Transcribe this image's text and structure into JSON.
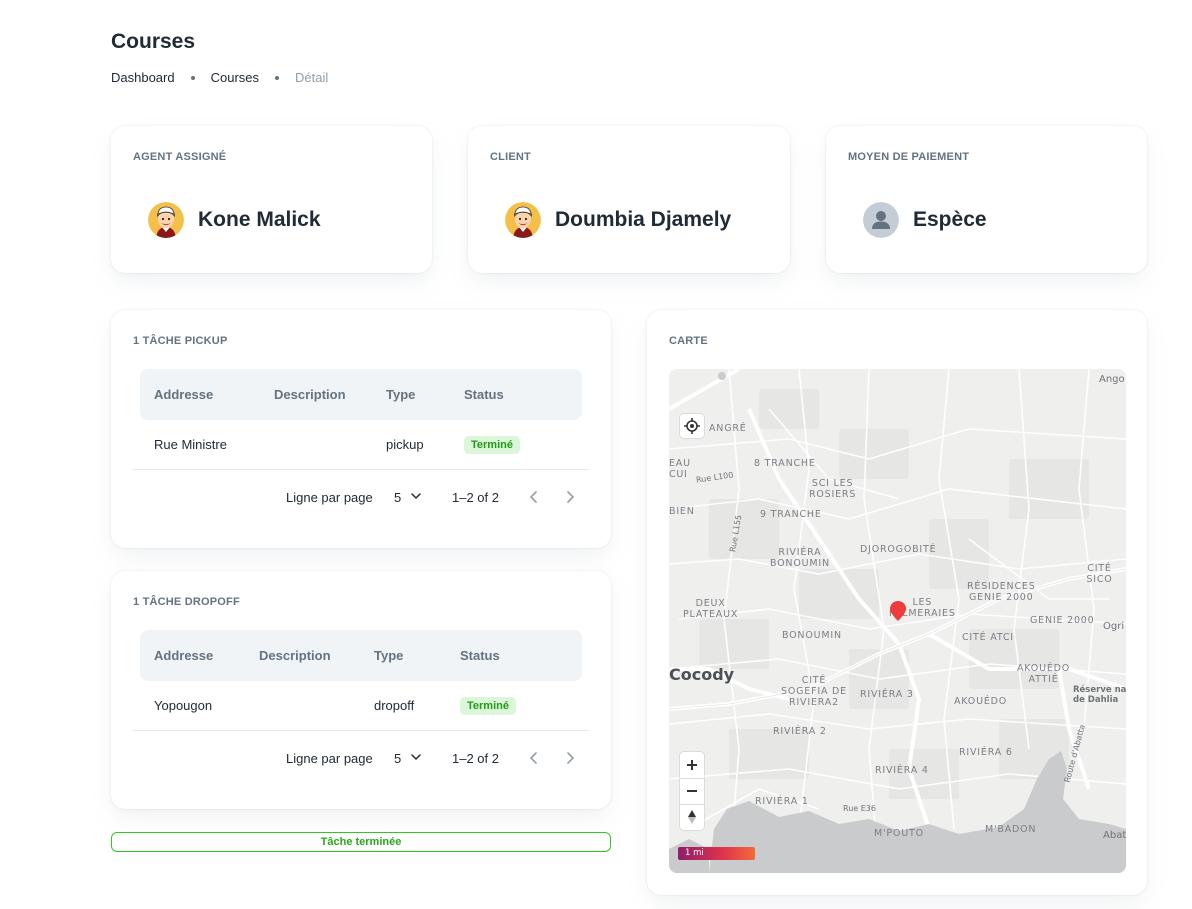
{
  "header": {
    "title": "Courses",
    "breadcrumb": [
      "Dashboard",
      "Courses",
      "Détail"
    ]
  },
  "info_cards": {
    "agent": {
      "label": "AGENT ASSIGNÉ",
      "name": "Kone Malick",
      "avatar_icon": "cartoon-avatar-icon"
    },
    "client": {
      "label": "CLIENT",
      "name": "Doumbia Djamely",
      "avatar_icon": "cartoon-avatar-icon"
    },
    "payment": {
      "label": "MOYEN DE PAIEMENT",
      "name": "Espèce",
      "avatar_icon": "default-user-icon"
    }
  },
  "table_headers": {
    "address": "Addresse",
    "description": "Description",
    "type": "Type",
    "status": "Status"
  },
  "pickup": {
    "title": "1 TÂCHE PICKUP",
    "rows": [
      {
        "address": "Rue Ministre",
        "description": "",
        "type": "pickup",
        "status": "Terminé"
      }
    ]
  },
  "dropoff": {
    "title": "1 TÂCHE DROPOFF",
    "rows": [
      {
        "address": "Yopougon",
        "description": "",
        "type": "dropoff",
        "status": "Terminé"
      }
    ]
  },
  "pagination": {
    "rows_label": "Ligne par page",
    "rows_value": "5",
    "range": "1–2 of 2"
  },
  "done_button": "Tâche terminée",
  "map": {
    "title": "CARTE",
    "scale": "1 mi",
    "city": "Cocody",
    "districts": {
      "angre": "ANGRÉ",
      "tranche8": "8 TRANCHE",
      "sci_rosiers": "SCI LES\nROSIERS",
      "tranche9": "9 TRANCHE",
      "riviera_bonoumin": "RIVIÉRA\nBONOUMIN",
      "djorogobite": "DJOROGOBITÉ",
      "residences": "RÉSIDENCES\nGENIE 2000",
      "cite_sico": "CITÉ SICO",
      "deux_plateaux": "DEUX\nPLATEAUX",
      "palmeraies": "LES\nPALMERAIES",
      "genie2000": "GENIE 2000",
      "bonoumin": "BONOUMIN",
      "cite_atci": "CITÉ ATCI",
      "akouedo_attie": "AKOUÉDO\nATTIÉ",
      "sogefia": "CITÉ\nSOGEFIA DE\nRIVIERA2",
      "riviera3": "RIVIÉRA 3",
      "akouedo": "AKOUÉDO",
      "riviera2": "RIVIÉRA 2",
      "riviera6": "RIVIÉRA 6",
      "riviera4": "RIVIÉRA 4",
      "riviera1": "RIVIÉRA 1",
      "mpouto": "M'POUTO",
      "mbadon": "M'BADON",
      "eau": "EAU\nCUI",
      "bien": "BIEN"
    },
    "roads": {
      "l100": "Rue L100",
      "l155": "Rue L155",
      "e36": "Rue E36",
      "abatta": "Route d'Abatta"
    },
    "places": {
      "ango": "Ango",
      "ogri": "Ogri",
      "reserve": "Réserve na\nde Dahlia",
      "abat": "Abat"
    }
  }
}
